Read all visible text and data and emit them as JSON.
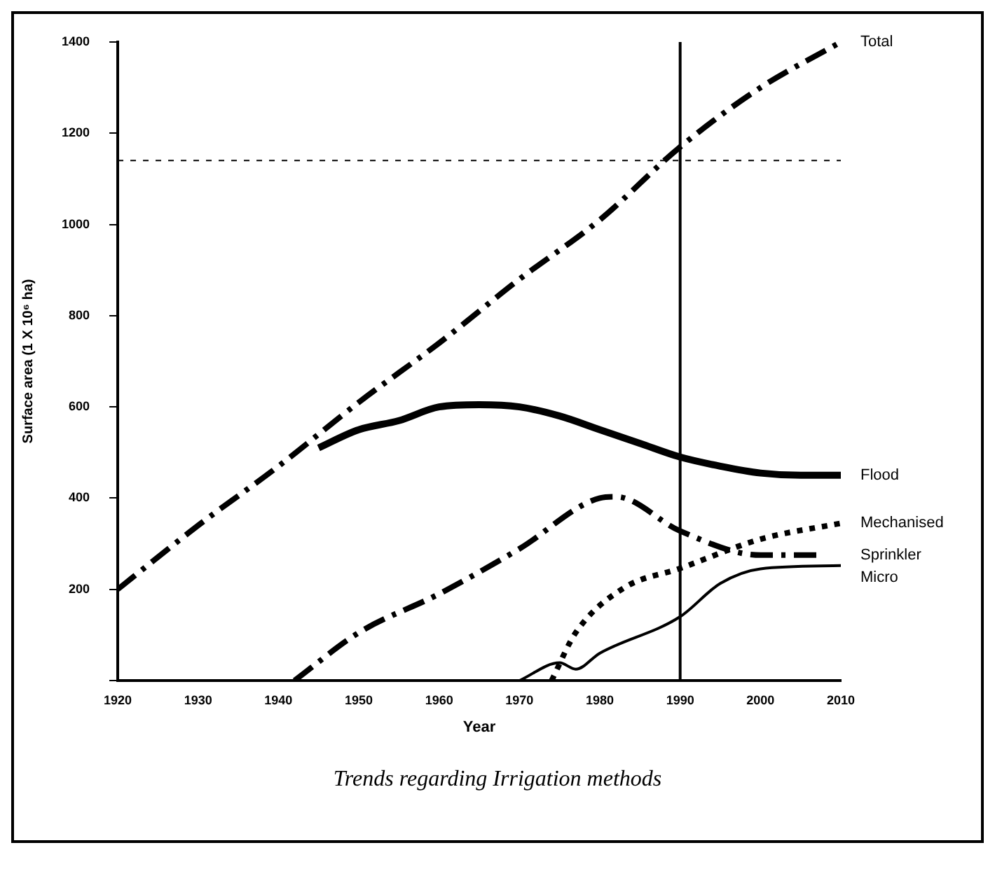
{
  "chart_data": {
    "type": "line",
    "title": "Trends regarding Irrigation methods",
    "xlabel": "Year",
    "ylabel": "Surface area (1 X 10⁶ ha)",
    "xlim": [
      1920,
      2010
    ],
    "xticks": [
      1920,
      1930,
      1940,
      1950,
      1960,
      1970,
      1980,
      1990,
      2000,
      2010
    ],
    "ylim": [
      0,
      1400
    ],
    "yticks": [
      {
        "value": 0,
        "label": null
      },
      200,
      400,
      600,
      800,
      1000,
      1200,
      1400
    ],
    "grid": false,
    "legend": false,
    "marker": "none",
    "ref_lines": [
      {
        "axis": "y",
        "value": 1140,
        "line_style": "dotted",
        "color": "#000000"
      },
      {
        "axis": "x",
        "value": 1990,
        "line_style": "solid",
        "color": "#000000"
      }
    ],
    "series": [
      {
        "name": "Total",
        "color": "#000000",
        "line_style": "dashed",
        "x": [
          1920,
          1930,
          1940,
          1950,
          1960,
          1970,
          1980,
          1990,
          2000,
          2010
        ],
        "values": [
          200,
          340,
          470,
          610,
          740,
          880,
          1010,
          1170,
          1300,
          1400
        ]
      },
      {
        "name": "Flood",
        "color": "#000000",
        "line_style": "solid",
        "x": [
          1945,
          1950,
          1955,
          1960,
          1965,
          1970,
          1975,
          1980,
          1985,
          1990,
          1995,
          2000,
          2005,
          2010
        ],
        "values": [
          510,
          550,
          570,
          600,
          605,
          600,
          580,
          550,
          520,
          490,
          470,
          455,
          450,
          450
        ]
      },
      {
        "name": "Mechanised",
        "color": "#000000",
        "line_style": "dotted",
        "x": [
          1974,
          1977,
          1983,
          1990,
          2000,
          2010
        ],
        "values": [
          0,
          105,
          203,
          246,
          310,
          345
        ]
      },
      {
        "name": "Sprinkler",
        "color": "#000000",
        "line_style": "dashed",
        "x": [
          1942,
          1950,
          1960,
          1970,
          1980,
          1982,
          1990,
          2000,
          2007
        ],
        "values": [
          0,
          105,
          190,
          289,
          400,
          403,
          328,
          275,
          275
        ]
      },
      {
        "name": "Micro",
        "color": "#000000",
        "line_style": "solid",
        "x": [
          1970,
          1975,
          1977,
          1980,
          1990,
          1995,
          2000,
          2010
        ],
        "values": [
          0,
          39,
          25,
          60,
          140,
          213,
          245,
          252
        ]
      }
    ]
  }
}
